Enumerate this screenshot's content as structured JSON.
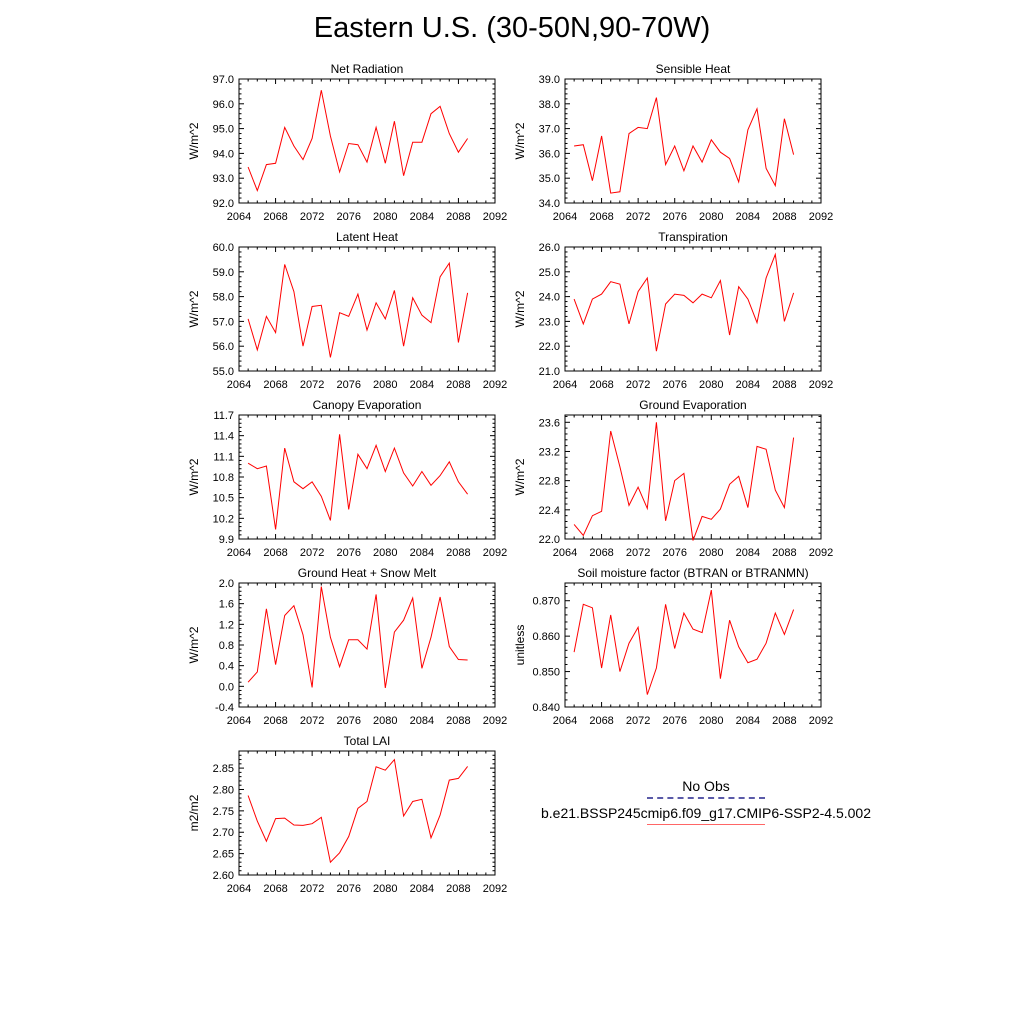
{
  "title": "Eastern U.S. (30-50N,90-70W)",
  "legend": {
    "obs_label": "No Obs",
    "case_label": "b.e21.BSSP245cmip6.f09_g17.CMIP6-SSP2-4.5.002",
    "obs_color": "#5a5aa8",
    "case_color": "#ff0000"
  },
  "chart_data": [
    {
      "type": "line",
      "title": "Net Radiation",
      "ylabel": "W/m^2",
      "xlim": [
        2064,
        2092
      ],
      "xticks": [
        2064,
        2068,
        2072,
        2076,
        2080,
        2084,
        2088,
        2092
      ],
      "ylim": [
        92.0,
        97.0
      ],
      "yticks": [
        "92.0",
        "93.0",
        "94.0",
        "95.0",
        "96.0",
        "97.0"
      ],
      "x": [
        2065,
        2066,
        2067,
        2068,
        2069,
        2070,
        2071,
        2072,
        2073,
        2074,
        2075,
        2076,
        2077,
        2078,
        2079,
        2080,
        2081,
        2082,
        2083,
        2084,
        2085,
        2086,
        2087,
        2088,
        2089
      ],
      "series": [
        {
          "color": "#ff0000",
          "values": [
            93.45,
            92.5,
            93.55,
            93.6,
            95.05,
            94.3,
            93.75,
            94.6,
            96.55,
            94.7,
            93.25,
            94.4,
            94.35,
            93.65,
            95.05,
            93.6,
            95.3,
            93.1,
            94.45,
            94.45,
            95.6,
            95.9,
            94.8,
            94.05,
            94.6
          ]
        }
      ]
    },
    {
      "type": "line",
      "title": "Sensible Heat",
      "ylabel": "W/m^2",
      "xlim": [
        2064,
        2092
      ],
      "xticks": [
        2064,
        2068,
        2072,
        2076,
        2080,
        2084,
        2088,
        2092
      ],
      "ylim": [
        34.0,
        39.0
      ],
      "yticks": [
        "34.0",
        "35.0",
        "36.0",
        "37.0",
        "38.0",
        "39.0"
      ],
      "x": [
        2065,
        2066,
        2067,
        2068,
        2069,
        2070,
        2071,
        2072,
        2073,
        2074,
        2075,
        2076,
        2077,
        2078,
        2079,
        2080,
        2081,
        2082,
        2083,
        2084,
        2085,
        2086,
        2087,
        2088,
        2089
      ],
      "series": [
        {
          "color": "#ff0000",
          "values": [
            36.3,
            36.35,
            34.9,
            36.7,
            34.4,
            34.45,
            36.8,
            37.05,
            37.0,
            38.25,
            35.55,
            36.3,
            35.3,
            36.3,
            35.65,
            36.55,
            36.05,
            35.8,
            34.85,
            36.95,
            37.8,
            35.4,
            34.7,
            37.4,
            35.95
          ]
        }
      ]
    },
    {
      "type": "line",
      "title": "Latent Heat",
      "ylabel": "W/m^2",
      "xlim": [
        2064,
        2092
      ],
      "xticks": [
        2064,
        2068,
        2072,
        2076,
        2080,
        2084,
        2088,
        2092
      ],
      "ylim": [
        55.0,
        60.0
      ],
      "yticks": [
        "55.0",
        "56.0",
        "57.0",
        "58.0",
        "59.0",
        "60.0"
      ],
      "x": [
        2065,
        2066,
        2067,
        2068,
        2069,
        2070,
        2071,
        2072,
        2073,
        2074,
        2075,
        2076,
        2077,
        2078,
        2079,
        2080,
        2081,
        2082,
        2083,
        2084,
        2085,
        2086,
        2087,
        2088,
        2089
      ],
      "series": [
        {
          "color": "#ff0000",
          "values": [
            57.1,
            55.85,
            57.2,
            56.55,
            59.3,
            58.2,
            56.0,
            57.6,
            57.65,
            55.55,
            57.35,
            57.2,
            58.1,
            56.65,
            57.75,
            57.1,
            58.25,
            56.0,
            57.95,
            57.25,
            56.95,
            58.8,
            59.35,
            56.15,
            58.15
          ]
        }
      ]
    },
    {
      "type": "line",
      "title": "Transpiration",
      "ylabel": "W/m^2",
      "xlim": [
        2064,
        2092
      ],
      "xticks": [
        2064,
        2068,
        2072,
        2076,
        2080,
        2084,
        2088,
        2092
      ],
      "ylim": [
        21.0,
        26.0
      ],
      "yticks": [
        "21.0",
        "22.0",
        "23.0",
        "24.0",
        "25.0",
        "26.0"
      ],
      "x": [
        2065,
        2066,
        2067,
        2068,
        2069,
        2070,
        2071,
        2072,
        2073,
        2074,
        2075,
        2076,
        2077,
        2078,
        2079,
        2080,
        2081,
        2082,
        2083,
        2084,
        2085,
        2086,
        2087,
        2088,
        2089
      ],
      "series": [
        {
          "color": "#ff0000",
          "values": [
            23.9,
            22.9,
            23.9,
            24.1,
            24.6,
            24.5,
            22.9,
            24.2,
            24.75,
            21.8,
            23.7,
            24.1,
            24.05,
            23.75,
            24.1,
            23.95,
            24.65,
            22.45,
            24.4,
            23.9,
            22.95,
            24.75,
            25.7,
            23.0,
            24.15
          ]
        }
      ]
    },
    {
      "type": "line",
      "title": "Canopy Evaporation",
      "ylabel": "W/m^2",
      "xlim": [
        2064,
        2092
      ],
      "xticks": [
        2064,
        2068,
        2072,
        2076,
        2080,
        2084,
        2088,
        2092
      ],
      "ylim": [
        9.9,
        11.7
      ],
      "yticks": [
        "9.9",
        "10.2",
        "10.5",
        "10.8",
        "11.1",
        "11.4",
        "11.7"
      ],
      "x": [
        2065,
        2066,
        2067,
        2068,
        2069,
        2070,
        2071,
        2072,
        2073,
        2074,
        2075,
        2076,
        2077,
        2078,
        2079,
        2080,
        2081,
        2082,
        2083,
        2084,
        2085,
        2086,
        2087,
        2088,
        2089
      ],
      "series": [
        {
          "color": "#ff0000",
          "values": [
            11.0,
            10.92,
            10.96,
            10.04,
            11.22,
            10.73,
            10.63,
            10.73,
            10.52,
            10.17,
            11.42,
            10.33,
            11.13,
            10.92,
            11.26,
            10.88,
            11.22,
            10.86,
            10.67,
            10.88,
            10.68,
            10.82,
            11.02,
            10.73,
            10.55
          ]
        }
      ]
    },
    {
      "type": "line",
      "title": "Ground Evaporation",
      "ylabel": "W/m^2",
      "xlim": [
        2064,
        2092
      ],
      "xticks": [
        2064,
        2068,
        2072,
        2076,
        2080,
        2084,
        2088,
        2092
      ],
      "ylim": [
        22.0,
        23.7
      ],
      "yticks": [
        "22.0",
        "22.4",
        "22.8",
        "23.2",
        "23.6"
      ],
      "x": [
        2065,
        2066,
        2067,
        2068,
        2069,
        2070,
        2071,
        2072,
        2073,
        2074,
        2075,
        2076,
        2077,
        2078,
        2079,
        2080,
        2081,
        2082,
        2083,
        2084,
        2085,
        2086,
        2087,
        2088,
        2089
      ],
      "series": [
        {
          "color": "#ff0000",
          "values": [
            22.2,
            22.05,
            22.32,
            22.38,
            23.48,
            22.99,
            22.46,
            22.71,
            22.42,
            23.6,
            22.25,
            22.8,
            22.9,
            21.98,
            22.31,
            22.27,
            22.41,
            22.75,
            22.86,
            22.43,
            23.27,
            23.23,
            22.67,
            22.43,
            23.39
          ]
        }
      ]
    },
    {
      "type": "line",
      "title": "Ground Heat + Snow Melt",
      "ylabel": "W/m^2",
      "xlim": [
        2064,
        2092
      ],
      "xticks": [
        2064,
        2068,
        2072,
        2076,
        2080,
        2084,
        2088,
        2092
      ],
      "ylim": [
        -0.4,
        2.0
      ],
      "yticks": [
        "-0.4",
        "0.0",
        "0.4",
        "0.8",
        "1.2",
        "1.6",
        "2.0"
      ],
      "x": [
        2065,
        2066,
        2067,
        2068,
        2069,
        2070,
        2071,
        2072,
        2073,
        2074,
        2075,
        2076,
        2077,
        2078,
        2079,
        2080,
        2081,
        2082,
        2083,
        2084,
        2085,
        2086,
        2087,
        2088,
        2089
      ],
      "series": [
        {
          "color": "#ff0000",
          "values": [
            0.08,
            0.28,
            1.5,
            0.42,
            1.37,
            1.56,
            1.0,
            -0.02,
            1.93,
            0.95,
            0.38,
            0.9,
            0.9,
            0.72,
            1.78,
            -0.03,
            1.05,
            1.28,
            1.71,
            0.35,
            0.95,
            1.73,
            0.77,
            0.52,
            0.51
          ]
        }
      ]
    },
    {
      "type": "line",
      "title": "Soil moisture factor (BTRAN or BTRANMN)",
      "ylabel": "unitless",
      "xlim": [
        2064,
        2092
      ],
      "xticks": [
        2064,
        2068,
        2072,
        2076,
        2080,
        2084,
        2088,
        2092
      ],
      "ylim": [
        0.84,
        0.875
      ],
      "yticks": [
        "0.840",
        "0.850",
        "0.860",
        "0.870"
      ],
      "x": [
        2065,
        2066,
        2067,
        2068,
        2069,
        2070,
        2071,
        2072,
        2073,
        2074,
        2075,
        2076,
        2077,
        2078,
        2079,
        2080,
        2081,
        2082,
        2083,
        2084,
        2085,
        2086,
        2087,
        2088,
        2089
      ],
      "series": [
        {
          "color": "#ff0000",
          "values": [
            0.8555,
            0.869,
            0.868,
            0.851,
            0.866,
            0.85,
            0.858,
            0.8625,
            0.8435,
            0.851,
            0.869,
            0.8565,
            0.8665,
            0.862,
            0.861,
            0.873,
            0.848,
            0.8645,
            0.857,
            0.8525,
            0.8535,
            0.858,
            0.8665,
            0.8605,
            0.8675
          ]
        }
      ]
    },
    {
      "type": "line",
      "title": "Total LAI",
      "ylabel": "m2/m2",
      "xlim": [
        2064,
        2092
      ],
      "xticks": [
        2064,
        2068,
        2072,
        2076,
        2080,
        2084,
        2088,
        2092
      ],
      "ylim": [
        2.6,
        2.89
      ],
      "yticks": [
        "2.60",
        "2.65",
        "2.70",
        "2.75",
        "2.80",
        "2.85"
      ],
      "x": [
        2065,
        2066,
        2067,
        2068,
        2069,
        2070,
        2071,
        2072,
        2073,
        2074,
        2075,
        2076,
        2077,
        2078,
        2079,
        2080,
        2081,
        2082,
        2083,
        2084,
        2085,
        2086,
        2087,
        2088,
        2089
      ],
      "series": [
        {
          "color": "#ff0000",
          "values": [
            2.786,
            2.726,
            2.679,
            2.732,
            2.733,
            2.717,
            2.716,
            2.72,
            2.735,
            2.63,
            2.652,
            2.69,
            2.756,
            2.772,
            2.853,
            2.845,
            2.87,
            2.738,
            2.772,
            2.777,
            2.687,
            2.74,
            2.822,
            2.826,
            2.854
          ]
        }
      ]
    }
  ]
}
